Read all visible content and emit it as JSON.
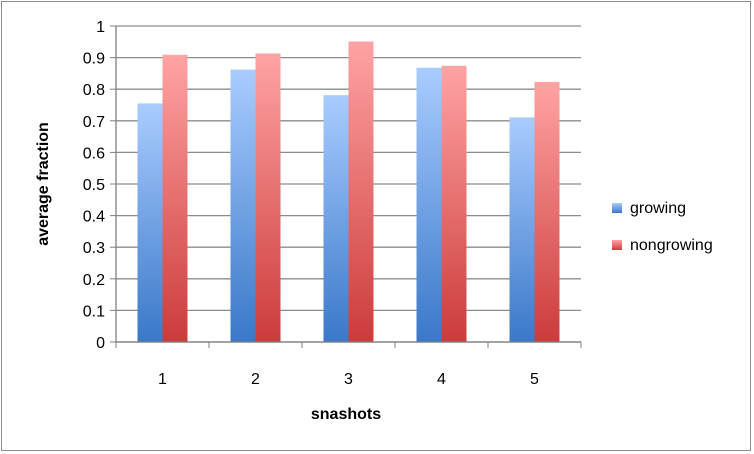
{
  "chart_data": {
    "type": "bar",
    "xlabel": "snashots",
    "ylabel": "average fraction",
    "categories": [
      "1",
      "2",
      "3",
      "4",
      "5"
    ],
    "series": [
      {
        "name": "growing",
        "values": [
          0.755,
          0.862,
          0.781,
          0.868,
          0.711
        ],
        "color": "#4f81bd"
      },
      {
        "name": "nongrowing",
        "values": [
          0.909,
          0.913,
          0.951,
          0.874,
          0.823
        ],
        "color": "#c0504d"
      }
    ],
    "ylim": [
      0,
      1
    ],
    "yticks": [
      "0",
      "0.1",
      "0.2",
      "0.3",
      "0.4",
      "0.5",
      "0.6",
      "0.7",
      "0.8",
      "0.9",
      "1"
    ],
    "grid": true,
    "legend_position": "right"
  }
}
